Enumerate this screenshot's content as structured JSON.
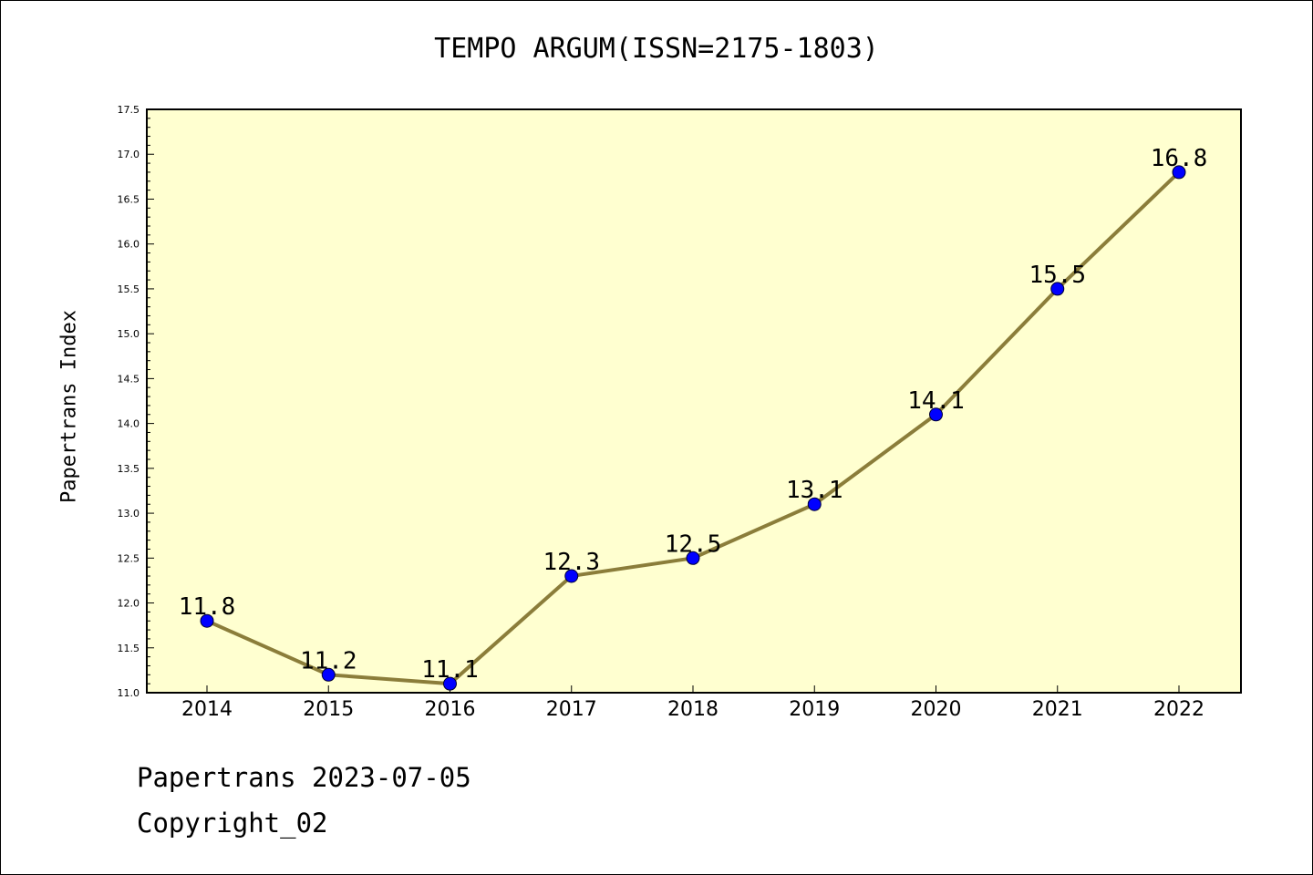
{
  "chart_data": {
    "type": "line",
    "title": "TEMPO ARGUM(ISSN=2175-1803)",
    "ylabel": "Papertrans Index",
    "xlabel": "",
    "categories": [
      "2014",
      "2015",
      "2016",
      "2017",
      "2018",
      "2019",
      "2020",
      "2021",
      "2022"
    ],
    "values": [
      11.8,
      11.2,
      11.1,
      12.3,
      12.5,
      13.1,
      14.1,
      15.5,
      16.8
    ],
    "data_labels": [
      "11.8",
      "11.2",
      "11.1",
      "12.3",
      "12.5",
      "13.1",
      "14.1",
      "15.5",
      "16.8"
    ],
    "ylim": [
      11.0,
      17.5
    ],
    "yticks": [
      "11.0",
      "11.5",
      "12.0",
      "12.5",
      "13.0",
      "13.5",
      "14.0",
      "14.5",
      "15.0",
      "15.5",
      "16.0",
      "16.5",
      "17.0",
      "17.5"
    ],
    "grid": false,
    "colors": {
      "plot_background": "#ffffd0",
      "line": "#8b7d3a",
      "marker": "#0000ff"
    }
  },
  "footer": {
    "date_line": "Papertrans 2023-07-05",
    "copyright": "Copyright_02"
  }
}
